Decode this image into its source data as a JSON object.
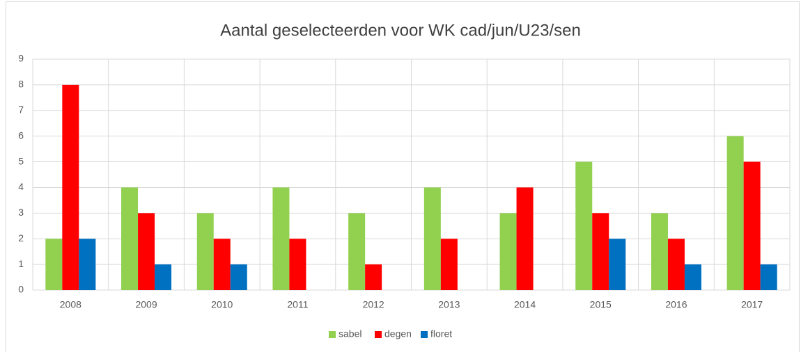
{
  "chart_data": {
    "type": "bar",
    "title": "Aantal geselecteerden voor WK cad/jun/U23/sen",
    "categories": [
      "2008",
      "2009",
      "2010",
      "2011",
      "2012",
      "2013",
      "2014",
      "2015",
      "2016",
      "2017"
    ],
    "series": [
      {
        "name": "sabel",
        "color": "#92d050",
        "values": [
          2,
          4,
          3,
          4,
          3,
          4,
          3,
          5,
          3,
          6
        ]
      },
      {
        "name": "degen",
        "color": "#ff0000",
        "values": [
          8,
          3,
          2,
          2,
          1,
          2,
          4,
          3,
          2,
          5
        ]
      },
      {
        "name": "floret",
        "color": "#0070c0",
        "values": [
          2,
          1,
          1,
          0,
          0,
          0,
          0,
          2,
          1,
          1
        ]
      }
    ],
    "ylim": [
      0,
      9
    ],
    "yticks": [
      0,
      1,
      2,
      3,
      4,
      5,
      6,
      7,
      8,
      9
    ],
    "grid": true,
    "legend": "bottom"
  }
}
